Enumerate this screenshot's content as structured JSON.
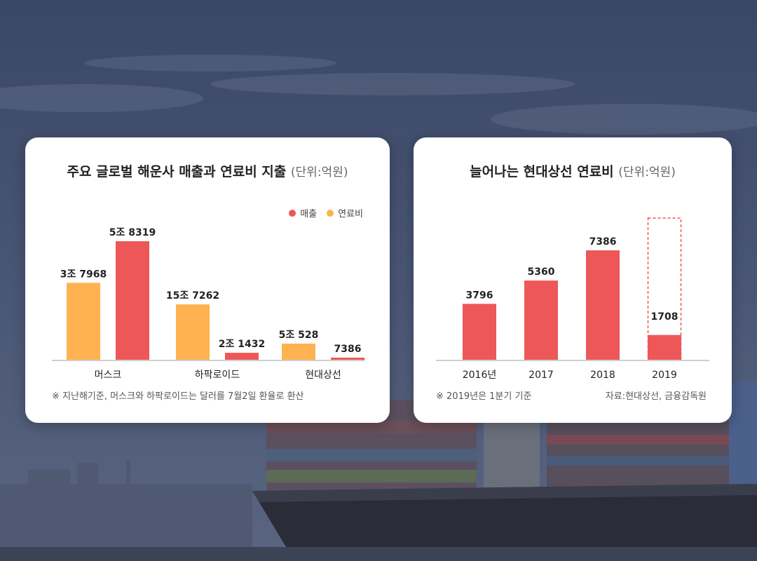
{
  "colors": {
    "revenue": "#ee5757",
    "fuel": "#ffb24f",
    "axis": "#cfcfcf"
  },
  "card1": {
    "title": "주요 글로벌 해운사 매출과 연료비 지출",
    "unit": "(단위:억원)",
    "legend": {
      "revenue": "매출",
      "fuel": "연료비"
    },
    "footnote": "※ 지난해기준, 머스크와 하팍로이드는 달러를 7월2일 환율로 환산"
  },
  "card2": {
    "title": "늘어나는 현대상선 연료비",
    "unit": "(단위:억원)",
    "footnote_left": "※ 2019년은 1분기 기준",
    "footnote_right": "자료:현대상선, 금융감독원"
  },
  "chart_data": [
    {
      "type": "bar",
      "title": "주요 글로벌 해운사 매출과 연료비 지출",
      "categories": [
        "머스크",
        "하팍로이드",
        "현대상선"
      ],
      "series": [
        {
          "name": "연료비",
          "values": [
            37968,
            157262,
            50528
          ],
          "labels": [
            "3조 7968",
            "15조 7262",
            "5조 528"
          ]
        },
        {
          "name": "매출",
          "values": [
            58319,
            21432,
            7386
          ],
          "labels": [
            "5조 8319",
            "2조 1432",
            "7386"
          ]
        }
      ],
      "legend": "top-right",
      "grid": false
    },
    {
      "type": "bar",
      "title": "늘어나는 현대상선 연료비",
      "categories": [
        "2016년",
        "2017",
        "2018",
        "2019"
      ],
      "values": [
        3796,
        5360,
        7386,
        1708
      ],
      "labels": [
        "3796",
        "5360",
        "7386",
        "1708"
      ],
      "grid": false
    }
  ]
}
